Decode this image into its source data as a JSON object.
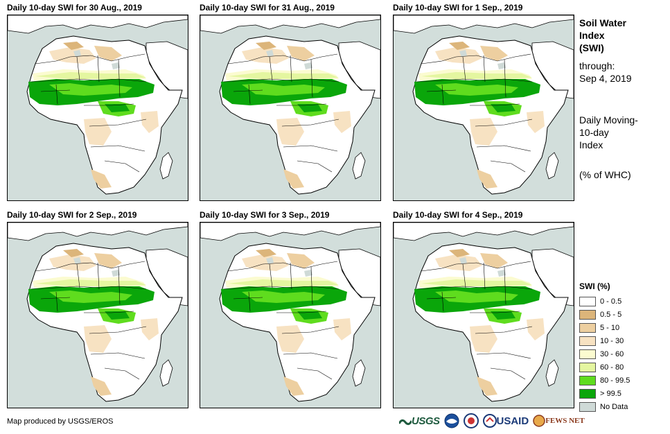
{
  "panels": [
    {
      "title": "Daily 10-day  SWI for 30 Aug., 2019"
    },
    {
      "title": "Daily 10-day  SWI for 31 Aug., 2019"
    },
    {
      "title": "Daily 10-day  SWI for 1  Sep., 2019"
    },
    {
      "title": "Daily 10-day  SWI for 2  Sep., 2019"
    },
    {
      "title": "Daily 10-day  SWI for 3  Sep., 2019"
    },
    {
      "title": "Daily 10-day  SWI for 4  Sep., 2019"
    }
  ],
  "side": {
    "title_line1": "Soil Water",
    "title_line2": "Index",
    "title_line3": "(SWI)",
    "through_label": "through:",
    "through_date": "Sep 4, 2019",
    "desc_line1": "Daily Moving-",
    "desc_line2": "10-day",
    "desc_line3": "Index",
    "units": "(% of WHC)"
  },
  "legend": {
    "title": "SWI (%)",
    "items": [
      {
        "label": "0 - 0.5",
        "color": "#ffffff"
      },
      {
        "label": "0.5 - 5",
        "color": "#dcb57a"
      },
      {
        "label": "5 - 10",
        "color": "#edcfa0"
      },
      {
        "label": "10 - 30",
        "color": "#f7e2c2"
      },
      {
        "label": "30 - 60",
        "color": "#fbfbd0"
      },
      {
        "label": "60 - 80",
        "color": "#e4f6a0"
      },
      {
        "label": "80 - 99.5",
        "color": "#5fdc1e"
      },
      {
        "label": "> 99.5",
        "color": "#0aa60a"
      },
      {
        "label": "No Data",
        "color": "#cfdad7"
      }
    ]
  },
  "credit": "Map produced by USGS/EROS",
  "logos": {
    "usgs": "USGS",
    "usaid": "USAID",
    "fews": "FEWS NET"
  },
  "colors": {
    "ocean": "#d2dedb",
    "land": "#ffffff",
    "dry": "#edcfa0",
    "verydry": "#dcb57a",
    "moist": "#5fdc1e",
    "wet": "#0aa60a",
    "nodata": "#cfdad7"
  }
}
